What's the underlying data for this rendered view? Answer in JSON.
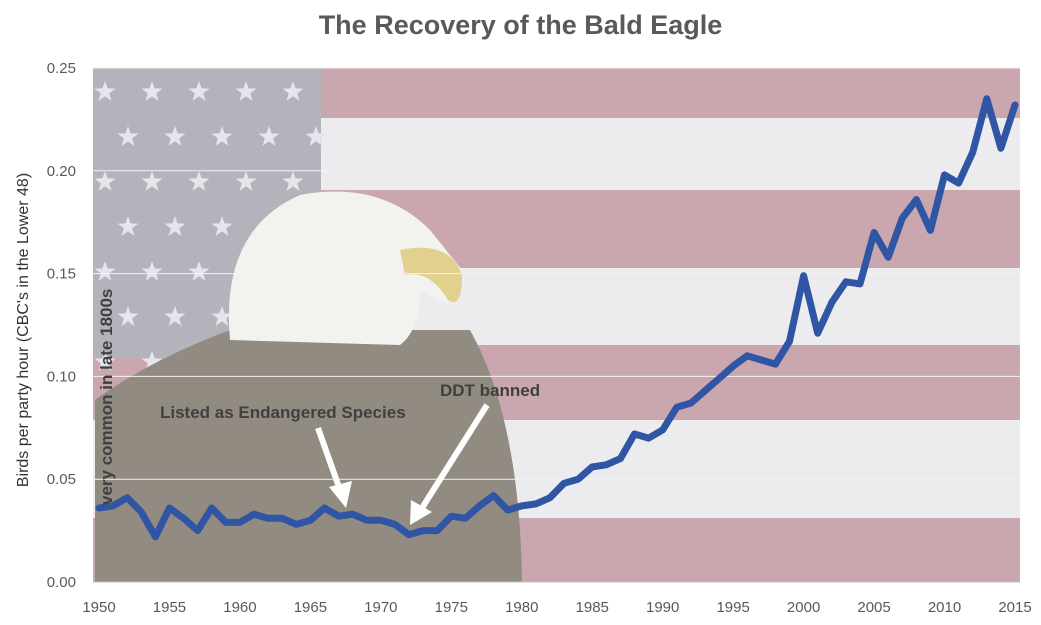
{
  "chart_data": {
    "type": "line",
    "title": "The Recovery of the Bald Eagle",
    "xlabel": "",
    "ylabel": "Birds per party hour (CBC's in the Lower 48)",
    "xlim": [
      1950,
      2015
    ],
    "ylim": [
      0,
      0.25
    ],
    "grid": true,
    "x_ticks": [
      "1950",
      "1955",
      "1960",
      "1965",
      "1970",
      "1975",
      "1980",
      "1985",
      "1990",
      "1995",
      "2000",
      "2005",
      "2010",
      "2015"
    ],
    "y_ticks": [
      "0.00",
      "0.05",
      "0.10",
      "0.15",
      "0.20",
      "0.25"
    ],
    "line_color": "#2f55a4",
    "background": "American flag with bald eagle photo",
    "x": [
      1950,
      1951,
      1952,
      1953,
      1954,
      1955,
      1956,
      1957,
      1958,
      1959,
      1960,
      1961,
      1962,
      1963,
      1964,
      1965,
      1966,
      1967,
      1968,
      1969,
      1970,
      1971,
      1972,
      1973,
      1974,
      1975,
      1976,
      1977,
      1978,
      1979,
      1980,
      1981,
      1982,
      1983,
      1984,
      1985,
      1986,
      1987,
      1988,
      1989,
      1990,
      1991,
      1992,
      1993,
      1994,
      1995,
      1996,
      1997,
      1998,
      1999,
      2000,
      2001,
      2002,
      2003,
      2004,
      2005,
      2006,
      2007,
      2008,
      2009,
      2010,
      2011,
      2012,
      2013,
      2014,
      2015
    ],
    "values": [
      0.036,
      0.037,
      0.041,
      0.034,
      0.022,
      0.036,
      0.031,
      0.025,
      0.036,
      0.029,
      0.029,
      0.033,
      0.031,
      0.031,
      0.028,
      0.03,
      0.036,
      0.032,
      0.033,
      0.03,
      0.03,
      0.028,
      0.023,
      0.025,
      0.025,
      0.032,
      0.031,
      0.037,
      0.042,
      0.035,
      0.037,
      0.038,
      0.041,
      0.048,
      0.05,
      0.056,
      0.057,
      0.06,
      0.072,
      0.07,
      0.074,
      0.085,
      0.087,
      0.093,
      0.099,
      0.105,
      0.11,
      0.108,
      0.106,
      0.117,
      0.149,
      0.121,
      0.136,
      0.146,
      0.145,
      0.17,
      0.158,
      0.177,
      0.186,
      0.171,
      0.198,
      0.194,
      0.209,
      0.235,
      0.211,
      0.232
    ],
    "annotations": {
      "side_note": "very common in late 1800s",
      "endangered": "Listed as Endangered Species",
      "ddt": "DDT banned"
    }
  }
}
